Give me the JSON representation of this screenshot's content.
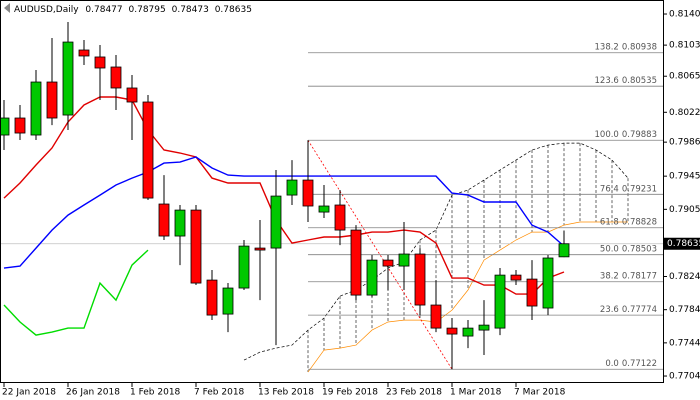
{
  "chart_data": {
    "type": "candlestick",
    "title": "AUDUSD,Daily",
    "categories": [
      "22 Jan 2018",
      null,
      null,
      null,
      "26 Jan 2018",
      null,
      null,
      null,
      "1 Feb 2018",
      null,
      null,
      null,
      "7 Feb 2018",
      null,
      null,
      null,
      "13 Feb 2018",
      null,
      null,
      null,
      "19 Feb 2018",
      null,
      null,
      null,
      "23 Feb 2018",
      null,
      null,
      null,
      "1 Mar 2018",
      null,
      null,
      null,
      "7 Mar 2018",
      null,
      null,
      null,
      null,
      null,
      null,
      null
    ],
    "open": [
      0.79946,
      0.80151,
      0.79946,
      0.80585,
      0.80187,
      0.80971,
      0.80887,
      0.80766,
      0.80513,
      0.80344,
      0.79114,
      0.78728,
      0.79041,
      0.78197,
      0.77787,
      0.78101,
      0.78583,
      0.78583,
      0.79222,
      0.79403,
      0.79017,
      0.79102,
      0.788,
      0.78016,
      0.78438,
      0.78366,
      0.78511,
      0.77896,
      0.77618,
      0.77522,
      0.77594,
      0.77618,
      0.78257,
      0.78209,
      0.7786,
      0.78477,
      null,
      null,
      null,
      null
    ],
    "high": [
      0.80368,
      0.80308,
      0.8073,
      0.81116,
      0.81309,
      0.81092,
      0.81031,
      0.80911,
      0.80669,
      0.80428,
      0.79463,
      0.79102,
      0.79102,
      0.78318,
      0.78161,
      0.7868,
      0.78921,
      0.79524,
      0.79644,
      0.79883,
      0.79343,
      0.79283,
      0.7886,
      0.78499,
      0.78499,
      0.78897,
      0.78583,
      0.78197,
      0.77739,
      0.77715,
      0.77956,
      0.78342,
      0.78318,
      0.78438,
      0.78499,
      0.78795,
      null,
      null,
      null,
      null
    ],
    "low": [
      0.79765,
      0.79886,
      0.79886,
      0.80066,
      0.80006,
      0.8079,
      0.80368,
      0.80247,
      0.79886,
      0.79162,
      0.7868,
      0.78378,
      0.78137,
      0.77715,
      0.7757,
      0.78077,
      0.77956,
      0.77413,
      0.79102,
      0.78897,
      0.78945,
      0.78619,
      0.77956,
      0.77992,
      0.78077,
      0.78077,
      0.77775,
      0.7757,
      0.77122,
      0.77377,
      0.77293,
      0.77534,
      0.78137,
      0.77715,
      0.77775,
      0.78473,
      null,
      null,
      null,
      null
    ],
    "close": [
      0.80151,
      0.7997,
      0.80585,
      0.80151,
      0.81067,
      0.80899,
      0.80754,
      0.80513,
      0.80344,
      0.79186,
      0.78728,
      0.79041,
      0.78161,
      0.77775,
      0.78101,
      0.78607,
      0.78559,
      0.7921,
      0.79403,
      0.7909,
      0.7909,
      0.788,
      0.78016,
      0.78438,
      0.78366,
      0.78511,
      0.77896,
      0.77618,
      0.77546,
      0.77618,
      0.77654,
      0.78257,
      0.78197,
      0.77884,
      0.78463,
      0.78635,
      null,
      null,
      null,
      null
    ],
    "up_color": "#00c800",
    "down_color": "#ff0000",
    "lines": [
      {
        "color": "#e00000",
        "values": [
          0.79186,
          0.79367,
          0.79584,
          0.79789,
          0.80103,
          0.80308,
          0.80404,
          0.80404,
          0.80368,
          0.80006,
          0.79765,
          0.79729,
          0.79681,
          0.79427,
          0.79367,
          0.79367,
          0.79367,
          0.78921,
          0.78643,
          0.7868,
          0.78716,
          0.78716,
          0.7874,
          0.78776,
          0.78776,
          0.788,
          0.78776,
          0.78643,
          0.78221,
          0.78221,
          0.78137,
          0.78137,
          0.78028,
          0.78028,
          0.78221,
          0.78294,
          null,
          null,
          null,
          null
        ]
      },
      {
        "color": "#0000ff",
        "values": [
          0.78342,
          0.78366,
          0.78583,
          0.788,
          0.78981,
          0.79102,
          0.79222,
          0.79343,
          0.79427,
          0.795,
          0.79608,
          0.7962,
          0.79681,
          0.79548,
          0.79463,
          0.79451,
          0.79451,
          0.79451,
          0.79451,
          0.79451,
          0.79451,
          0.79451,
          0.79451,
          0.79451,
          0.79451,
          0.79451,
          0.79451,
          0.79451,
          0.79246,
          0.79222,
          0.79138,
          0.79138,
          0.79138,
          0.7886,
          0.78776,
          0.78607,
          null,
          null,
          null,
          null
        ]
      },
      {
        "color": "#00dd00",
        "values": [
          0.77896,
          0.77691,
          0.77534,
          0.7757,
          0.77618,
          0.77618,
          0.78161,
          0.77956,
          0.78378,
          0.78559,
          null,
          null,
          null,
          null,
          null,
          null,
          null,
          null,
          null,
          null,
          null,
          null,
          null,
          null,
          null,
          null,
          null,
          null,
          null,
          null,
          null,
          null,
          null,
          null,
          null,
          null,
          null,
          null,
          null,
          null
        ]
      }
    ],
    "cloud": {
      "color": "#000000",
      "lower_color": "#ff8c00",
      "upper": [
        null,
        null,
        null,
        null,
        null,
        null,
        null,
        null,
        null,
        null,
        null,
        null,
        null,
        null,
        null,
        0.77232,
        0.77329,
        0.77377,
        0.77413,
        0.77594,
        0.77739,
        0.78004,
        0.78077,
        0.78197,
        0.78342,
        0.78414,
        0.7868,
        0.788,
        0.79222,
        0.79283,
        0.79403,
        0.79524,
        0.79644,
        0.79765,
        0.79825,
        0.79849,
        0.79849,
        0.79765,
        0.79644,
        0.79427
      ],
      "lower": [
        null,
        null,
        null,
        null,
        null,
        null,
        null,
        null,
        null,
        null,
        null,
        null,
        null,
        null,
        null,
        null,
        null,
        null,
        null,
        0.77088,
        0.77353,
        0.77377,
        0.77413,
        0.77594,
        0.77691,
        0.77715,
        0.77715,
        0.77691,
        0.77835,
        0.78077,
        0.78438,
        0.78559,
        0.7868,
        0.78776,
        0.78776,
        0.7886,
        0.78897,
        0.78897,
        0.78897,
        0.78897
      ]
    },
    "fibonacci": [
      {
        "level": "138.2",
        "value": 0.80938
      },
      {
        "level": "123.6",
        "value": 0.80535
      },
      {
        "level": "100.0",
        "value": 0.79883
      },
      {
        "level": "76.4",
        "value": 0.79231
      },
      {
        "level": "61.8",
        "value": 0.78828
      },
      {
        "level": "50.0",
        "value": 0.78503
      },
      {
        "level": "38.2",
        "value": 0.78177
      },
      {
        "level": "23.6",
        "value": 0.77774
      },
      {
        "level": "0.0",
        "value": 0.77122
      }
    ],
    "fib_color": "#808080",
    "fib_diagonal_color": "#ff0000",
    "ylim": [
      0.76956,
      0.81574
    ],
    "yticks": [
      0.81405,
      {
        "value": 0.8103,
        "label": "0.81030"
      },
      0.80655,
      {
        "value": 0.8022,
        "label": "0.80220"
      },
      {
        "value": 0.7986,
        "label": "0.79860"
      },
      {
        "value": 0.7945,
        "label": "0.79450"
      },
      {
        "value": 0.7905,
        "label": "0.79050"
      },
      {
        "value": 0.7824,
        "label": "0.78240"
      },
      {
        "value": 0.7784,
        "label": "0.77840"
      },
      {
        "value": 0.7744,
        "label": "0.77440"
      },
      {
        "value": 0.7704,
        "label": "0.77040"
      }
    ],
    "grid": false
  }
}
